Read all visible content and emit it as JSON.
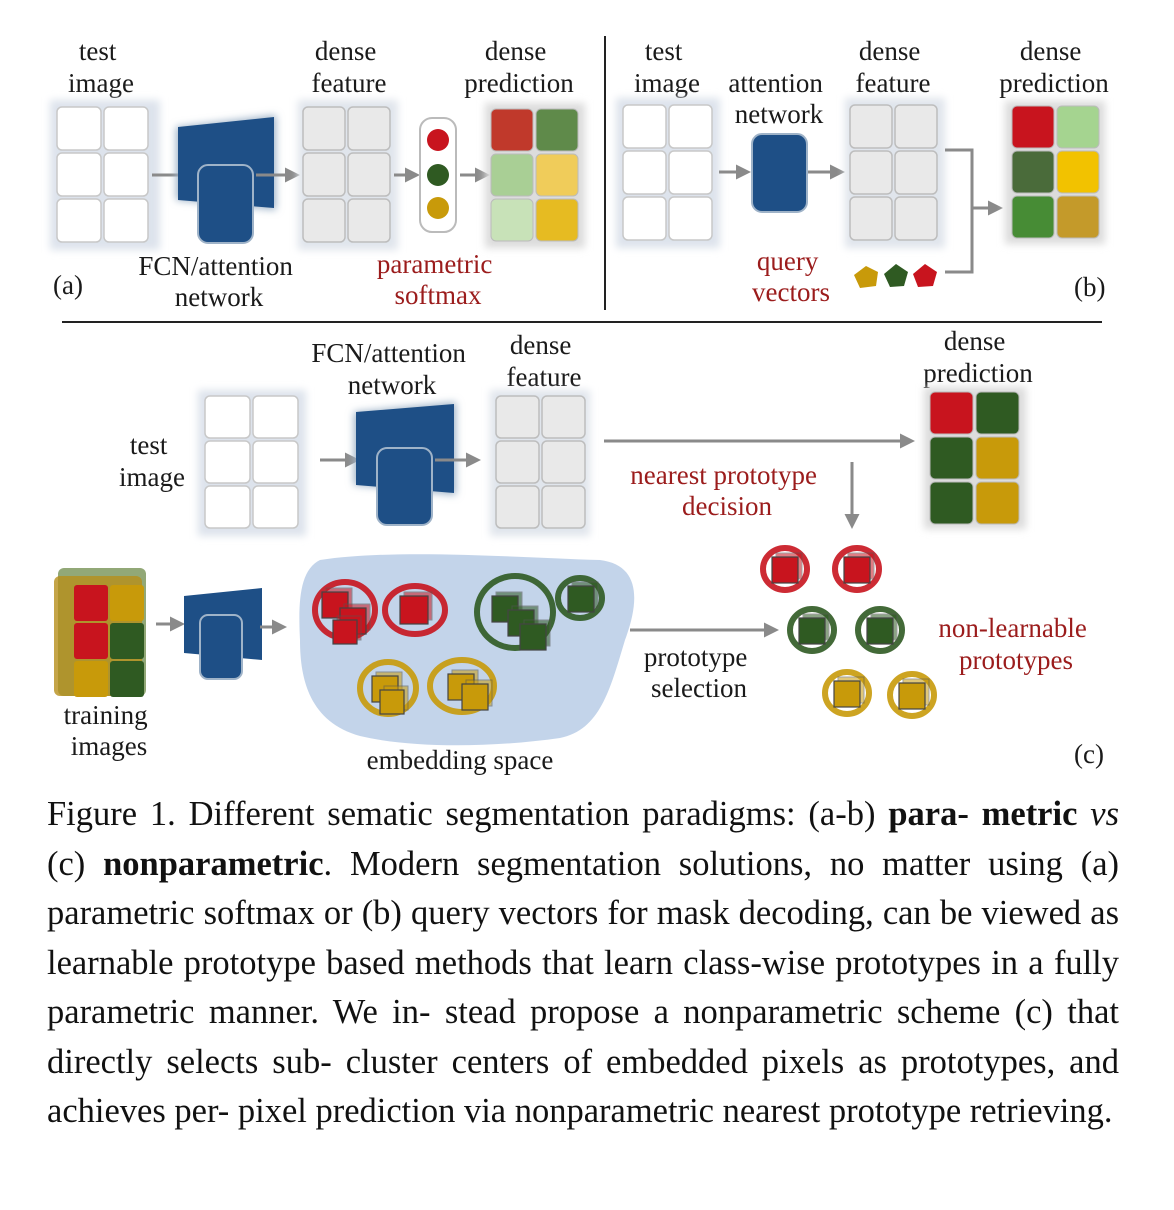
{
  "panel_a": {
    "test_image": [
      "test",
      "image"
    ],
    "network": [
      "FCN/attention",
      "network"
    ],
    "dense_feature": [
      "dense",
      "feature"
    ],
    "dense_prediction": [
      "dense",
      "prediction"
    ],
    "softmax": [
      "parametric",
      "softmax"
    ],
    "tag": "(a)",
    "prediction_colors": [
      "#c0392b",
      "#5f8a4a",
      "#a9cf95",
      "#f0cc5a",
      "#c8e2b8",
      "#e6bb22"
    ]
  },
  "panel_b": {
    "test_image": [
      "test",
      "image"
    ],
    "network": [
      "attention",
      "network"
    ],
    "dense_feature": [
      "dense",
      "feature"
    ],
    "dense_prediction": [
      "dense",
      "prediction"
    ],
    "query": [
      "query",
      "vectors"
    ],
    "tag": "(b)",
    "prediction_colors": [
      "#c8141e",
      "#a5d490",
      "#4a6b3a",
      "#f2c200",
      "#478c35",
      "#c49a2a"
    ]
  },
  "panel_c": {
    "network": [
      "FCN/attention",
      "network"
    ],
    "dense_feature": [
      "dense",
      "feature"
    ],
    "dense_prediction": [
      "dense",
      "prediction"
    ],
    "test_image": [
      "test",
      "image"
    ],
    "nearest": [
      "nearest prototype",
      "decision"
    ],
    "training": [
      "training",
      "images"
    ],
    "embedding": "embedding space",
    "selection": [
      "prototype",
      "selection"
    ],
    "nonlearnable": [
      "non-learnable",
      "prototypes"
    ],
    "tag": "(c)",
    "prediction_colors": [
      "#c8141e",
      "#2f5a22",
      "#2f5a22",
      "#c89a0a",
      "#2f5a22",
      "#c89a0a"
    ]
  },
  "colors": {
    "red": "#c8141e",
    "green": "#2f5a22",
    "gold": "#c89a0a",
    "network": "#1e4f86",
    "accent_text": "#9b1c1c"
  },
  "caption": {
    "p1": "Figure 1. Different sematic segmentation paradigms: (a-b) ",
    "b1": "para- metric",
    "p2": " ",
    "i1": "vs",
    "p3": " (c) ",
    "b2": "nonparametric",
    "p4": ". Modern segmentation solutions, no matter using (a) parametric softmax or (b) query vectors for mask decoding, can be viewed as learnable prototype based methods that learn class-wise prototypes in a fully parametric manner.  We in- stead propose a nonparametric scheme (c) that directly selects sub- cluster centers of embedded pixels as prototypes, and achieves per- pixel prediction via nonparametric nearest prototype retrieving."
  }
}
